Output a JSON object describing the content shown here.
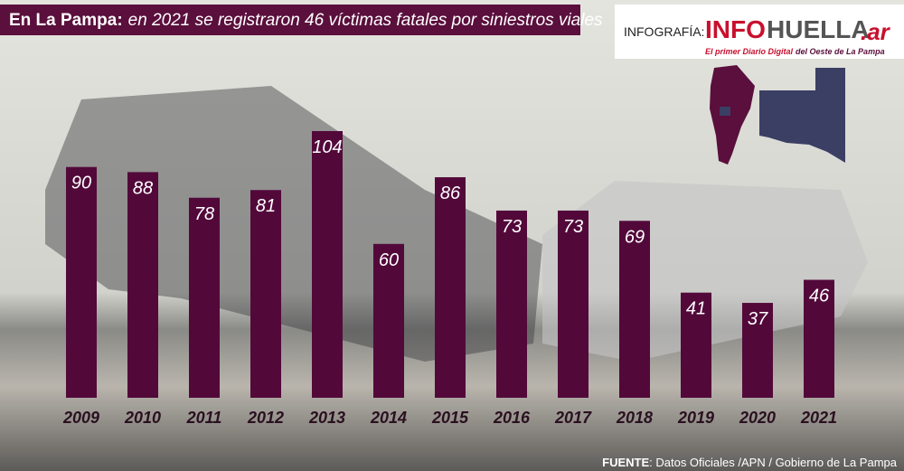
{
  "chart_data": {
    "type": "bar",
    "title_lead": "En La Pampa:",
    "title": "en 2021 se registraron 46 víctimas fatales por siniestros viales",
    "brand": {
      "label": "INFOGRAFÍA:",
      "info": "INFO",
      "huella": "HUELLA",
      "tld": ".ar",
      "tagline_a": "El primer Diario Digital",
      "tagline_b": "del Oeste de La Pampa"
    },
    "source_lead": "FUENTE",
    "source": ": Datos Oficiales /APN / Gobierno de La Pampa",
    "categories": [
      "2009",
      "2010",
      "2011",
      "2012",
      "2013",
      "2014",
      "2015",
      "2016",
      "2017",
      "2018",
      "2019",
      "2020",
      "2021"
    ],
    "values": [
      90,
      88,
      78,
      81,
      104,
      60,
      86,
      73,
      73,
      69,
      41,
      37,
      46
    ],
    "color": "#52093a",
    "ylim": [
      0,
      104
    ]
  }
}
